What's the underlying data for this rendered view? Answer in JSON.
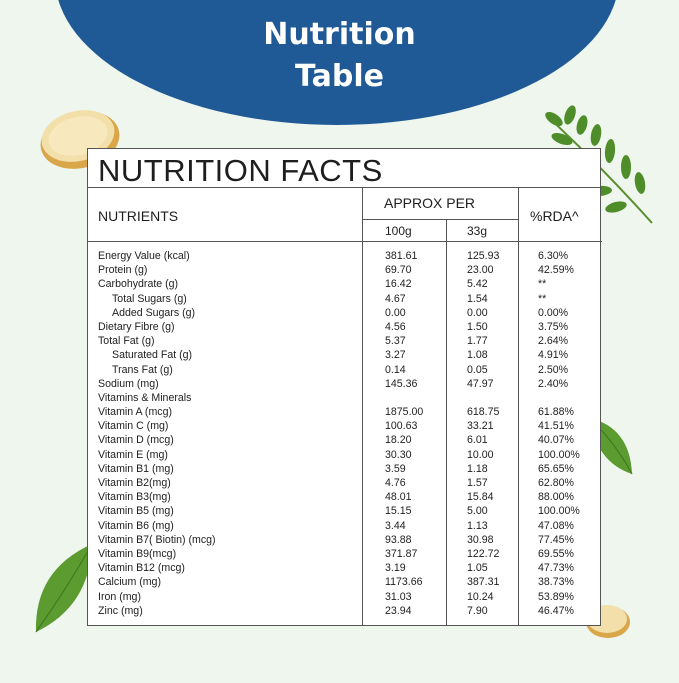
{
  "banner": {
    "title_line1": "Nutrition",
    "title_line2": "Table"
  },
  "table": {
    "title": "NUTRITION FACTS",
    "header_nutrients": "NUTRIENTS",
    "header_approx": "APPROX PER",
    "header_100g": "100g",
    "header_33g": "33g",
    "header_rda": "%RDA^",
    "rows": [
      {
        "name": "Energy Value (kcal)",
        "v100": "381.61",
        "v33": "125.93",
        "rda": "6.30%"
      },
      {
        "name": "Protein (g)",
        "v100": "69.70",
        "v33": "23.00",
        "rda": "42.59%"
      },
      {
        "name": "Carbohydrate (g)",
        "v100": "16.42",
        "v33": "5.42",
        "rda": "**"
      },
      {
        "name": "Total Sugars (g)",
        "v100": "4.67",
        "v33": "1.54",
        "rda": "**"
      },
      {
        "name": "Added Sugars (g)",
        "v100": "0.00",
        "v33": "0.00",
        "rda": "0.00%"
      },
      {
        "name": "Dietary Fibre (g)",
        "v100": "4.56",
        "v33": "1.50",
        "rda": "3.75%"
      },
      {
        "name": "Total Fat (g)",
        "v100": "5.37",
        "v33": "1.77",
        "rda": "2.64%"
      },
      {
        "name": "Saturated Fat (g)",
        "v100": "3.27",
        "v33": "1.08",
        "rda": "4.91%"
      },
      {
        "name": "Trans Fat (g)",
        "v100": "0.14",
        "v33": "0.05",
        "rda": "2.50%"
      },
      {
        "name": "Sodium (mg)",
        "v100": "145.36",
        "v33": "47.97",
        "rda": "2.40%"
      },
      {
        "name": "Vitamins & Minerals",
        "v100": "",
        "v33": "",
        "rda": ""
      },
      {
        "name": "Vitamin A (mcg)",
        "v100": "1875.00",
        "v33": "618.75",
        "rda": "61.88%"
      },
      {
        "name": "Vitamin C (mg)",
        "v100": "100.63",
        "v33": "33.21",
        "rda": "41.51%"
      },
      {
        "name": "Vitamin D (mcg)",
        "v100": "18.20",
        "v33": "6.01",
        "rda": "40.07%"
      },
      {
        "name": "Vitamin E (mg)",
        "v100": "30.30",
        "v33": "10.00",
        "rda": "100.00%"
      },
      {
        "name": "Vitamin B1 (mg)",
        "v100": "3.59",
        "v33": "1.18",
        "rda": "65.65%"
      },
      {
        "name": "Vitamin B2(mg)",
        "v100": "4.76",
        "v33": "1.57",
        "rda": "62.80%"
      },
      {
        "name": "Vitamin B3(mg)",
        "v100": "48.01",
        "v33": "15.84",
        "rda": "88.00%"
      },
      {
        "name": "Vitamin B5 (mg)",
        "v100": "15.15",
        "v33": "5.00",
        "rda": "100.00%"
      },
      {
        "name": "Vitamin B6 (mg)",
        "v100": "3.44",
        "v33": "1.13",
        "rda": "47.08%"
      },
      {
        "name": "Vitamin B7( Biotin) (mcg)",
        "v100": "93.88",
        "v33": "30.98",
        "rda": "77.45%"
      },
      {
        "name": "Vitamin B9(mcg)",
        "v100": "371.87",
        "v33": "122.72",
        "rda": "69.55%"
      },
      {
        "name": "Vitamin B12 (mcg)",
        "v100": "3.19",
        "v33": "1.05",
        "rda": "47.73%"
      },
      {
        "name": "Calcium (mg)",
        "v100": "1173.66",
        "v33": "387.31",
        "rda": "38.73%"
      },
      {
        "name": "Iron (mg)",
        "v100": "31.03",
        "v33": "10.24",
        "rda": "53.89%"
      },
      {
        "name": "Zinc (mg)",
        "v100": "23.94",
        "v33": "7.90",
        "rda": "46.47%"
      }
    ],
    "sub_rows": [
      3,
      4,
      7,
      8
    ]
  },
  "colors": {
    "banner": "#1f5a96",
    "background": "#eef6ee",
    "leaf": "#4f8d2a"
  }
}
